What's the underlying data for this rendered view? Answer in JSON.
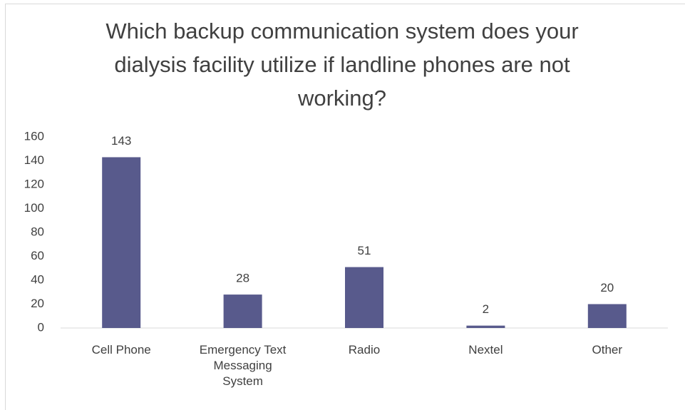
{
  "chart_data": {
    "type": "bar",
    "title": "Which backup communication system does your dialysis facility utilize if landline phones are not working?",
    "categories": [
      "Cell Phone",
      "Emergency Text Messaging System",
      "Radio",
      "Nextel",
      "Other"
    ],
    "values": [
      143,
      28,
      51,
      2,
      20
    ],
    "color": "#585a8c",
    "ylim": [
      0,
      160
    ],
    "yticks": [
      0,
      20,
      40,
      60,
      80,
      100,
      120,
      140,
      160
    ],
    "grid": false
  }
}
